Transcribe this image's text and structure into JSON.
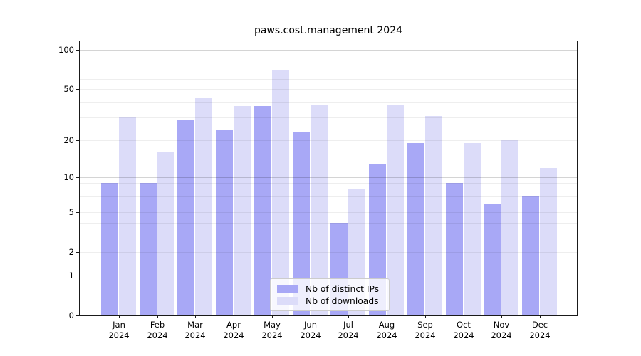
{
  "chart_data": {
    "type": "bar",
    "title": "paws.cost.management 2024",
    "categories": [
      "Jan",
      "Feb",
      "Mar",
      "Apr",
      "May",
      "Jun",
      "Jul",
      "Aug",
      "Sep",
      "Oct",
      "Nov",
      "Dec"
    ],
    "x_year_label": "2024",
    "series": [
      {
        "name": "Nb of distinct IPs",
        "color": "#a8a8f6",
        "values": [
          9,
          9,
          29,
          24,
          37,
          23,
          4,
          13,
          19,
          9,
          6,
          7
        ]
      },
      {
        "name": "Nb of downloads",
        "color": "#dcdcf9",
        "values": [
          30,
          16,
          43,
          37,
          70,
          38,
          8,
          38,
          31,
          19,
          20,
          12
        ]
      }
    ],
    "xlabel": "",
    "ylabel": "",
    "y_scale": "log1p",
    "ylim": [
      0,
      100
    ],
    "y_ticks": [
      0,
      1,
      2,
      5,
      10,
      20,
      50,
      100
    ],
    "grid": {
      "on": true,
      "major_values": [
        1,
        10,
        100
      ],
      "minor_values": [
        2,
        3,
        4,
        5,
        6,
        7,
        8,
        9,
        20,
        30,
        40,
        50,
        60,
        70,
        80,
        90
      ]
    },
    "legend": {
      "position": "lower center"
    }
  },
  "colors": {
    "bar_distinct_ips": "#a8a8f6",
    "bar_downloads": "#dcdcf9",
    "axis": "#1a1a1a",
    "background": "#ffffff"
  }
}
